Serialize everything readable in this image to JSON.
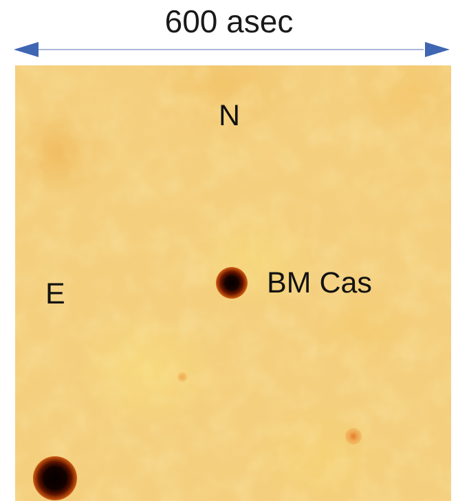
{
  "scale_label": "600 asec",
  "colors": {
    "arrow": "#3f66b2",
    "scale_line": "#a9b7d8",
    "sky": "#f4cf7e",
    "star_core": "#050000"
  },
  "labels": {
    "north": "N",
    "east": "E",
    "target": "BM Cas"
  }
}
